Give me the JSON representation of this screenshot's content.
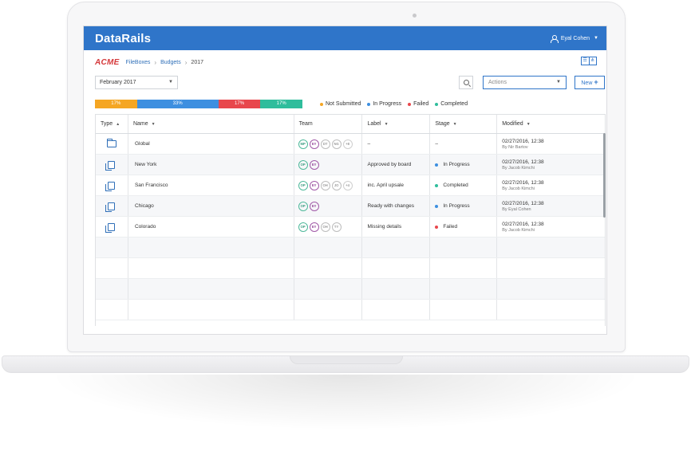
{
  "app": {
    "brand": "DataRails",
    "user_name": "Eyal Cohen"
  },
  "breadcrumb": {
    "logo": "ACME",
    "items": [
      "FileBoxes",
      "Budgets",
      "2017"
    ]
  },
  "controls": {
    "period": "February 2017",
    "actions_placeholder": "Actions",
    "new_label": "New"
  },
  "status_bar": {
    "segments": [
      {
        "label": "17%",
        "value": 17,
        "color": "#f5a623"
      },
      {
        "label": "33%",
        "value": 33,
        "color": "#3d8fe0"
      },
      {
        "label": "17%",
        "value": 17,
        "color": "#e8474c"
      },
      {
        "label": "17%",
        "value": 17,
        "color": "#2fbd9c"
      }
    ],
    "legend": [
      {
        "label": "Not Submitted",
        "color": "#f5a623"
      },
      {
        "label": "In Progress",
        "color": "#3d8fe0"
      },
      {
        "label": "Failed",
        "color": "#e8474c"
      },
      {
        "label": "Completed",
        "color": "#2fbd9c"
      }
    ]
  },
  "table": {
    "columns": [
      "Type",
      "Name",
      "Team",
      "Label",
      "Stage",
      "Modified"
    ],
    "rows": [
      {
        "type": "folder",
        "name": "Global",
        "team": [
          "MP",
          "EY",
          "DT",
          "NG",
          "+8"
        ],
        "label": "–",
        "stage": "–",
        "stage_color": "",
        "modified_date": "02/27/2016, 12:38",
        "modified_by": "By Nir Bartov"
      },
      {
        "type": "file",
        "name": "New York",
        "team": [
          "OP",
          "EY"
        ],
        "label": "Approved by board",
        "stage": "In Progress",
        "stage_color": "#3d8fe0",
        "modified_date": "02/27/2016, 12:38",
        "modified_by": "By Jacob Kimchi"
      },
      {
        "type": "file",
        "name": "San Francisco",
        "team": [
          "OP",
          "EY",
          "OH",
          "JO",
          "+4"
        ],
        "label": "inc. April upsale",
        "stage": "Completed",
        "stage_color": "#2fbd9c",
        "modified_date": "02/27/2016, 12:38",
        "modified_by": "By Jacob Kimchi"
      },
      {
        "type": "file",
        "name": "Chicago",
        "team": [
          "OP",
          "EY"
        ],
        "label": "Ready with changes",
        "stage": "In Progress",
        "stage_color": "#3d8fe0",
        "modified_date": "02/27/2016, 12:38",
        "modified_by": "By Eyal Cohen"
      },
      {
        "type": "file",
        "name": "Colorado",
        "team": [
          "OP",
          "EY",
          "OH",
          "TY"
        ],
        "label": "Missing details",
        "stage": "Failed",
        "stage_color": "#e8474c",
        "modified_date": "02/27/2016, 12:38",
        "modified_by": "By Jacob Kimchi"
      }
    ]
  }
}
